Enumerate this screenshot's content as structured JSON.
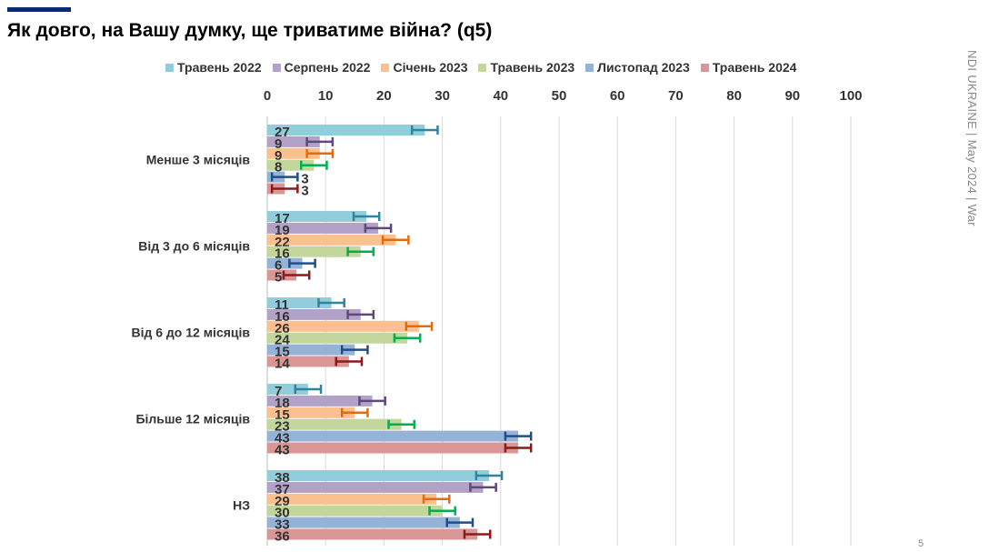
{
  "header": {
    "title": "Як довго, на Вашу думку, ще триватиме війна? (q5)"
  },
  "footer": {
    "side_text": "NDI UKRAINE | May 2024 | War",
    "page_number": "5"
  },
  "chart_data": {
    "type": "bar",
    "orientation": "horizontal",
    "title": "Як довго, на Вашу думку, ще триватиме війна? (q5)",
    "xlim": [
      0,
      100
    ],
    "xticks": [
      "0",
      "10",
      "20",
      "30",
      "40",
      "50",
      "60",
      "70",
      "80",
      "90",
      "100"
    ],
    "grid": true,
    "legend_position": "top",
    "categories": [
      "Менше 3 місяців",
      "Від 3 до 6 місяців",
      "Від 6 до 12 місяців",
      "Більше 12 місяців",
      "НЗ"
    ],
    "error_margin": 2.2,
    "series": [
      {
        "name": "Травень 2022",
        "color": "#92cddc",
        "err_color": "#31849b",
        "values": [
          27,
          17,
          11,
          7,
          38
        ]
      },
      {
        "name": "Серпень 2022",
        "color": "#b3a2c7",
        "err_color": "#5f497a",
        "values": [
          9,
          19,
          16,
          18,
          37
        ]
      },
      {
        "name": "Січень 2023",
        "color": "#fac090",
        "err_color": "#e46c0a",
        "values": [
          9,
          22,
          26,
          15,
          29
        ]
      },
      {
        "name": "Травень 2023",
        "color": "#c3d69b",
        "err_color": "#00b050",
        "values": [
          8,
          16,
          24,
          23,
          30
        ]
      },
      {
        "name": "Листопад 2023",
        "color": "#95b3d7",
        "err_color": "#1f4e8c",
        "values": [
          3,
          6,
          15,
          43,
          33
        ]
      },
      {
        "name": "Травень 2024",
        "color": "#d99694",
        "err_color": "#8b1a1a",
        "values": [
          3,
          5,
          14,
          43,
          36
        ]
      }
    ]
  }
}
